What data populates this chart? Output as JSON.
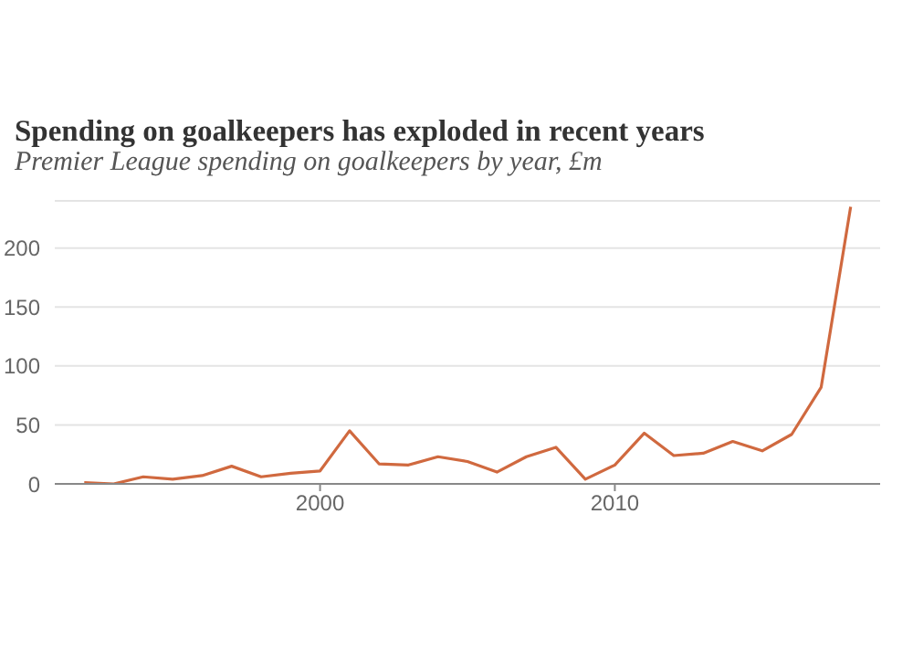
{
  "chart_data": {
    "type": "line",
    "title": "Spending on goalkeepers has exploded in recent years",
    "subtitle": "Premier League spending on goalkeepers by year, £m",
    "x": [
      1992,
      1993,
      1994,
      1995,
      1996,
      1997,
      1998,
      1999,
      2000,
      2001,
      2002,
      2003,
      2004,
      2005,
      2006,
      2007,
      2008,
      2009,
      2010,
      2011,
      2012,
      2013,
      2014,
      2015,
      2016,
      2017,
      2018
    ],
    "series": [
      {
        "color": "#d0693f",
        "values": [
          1,
          0,
          6,
          4,
          7,
          15,
          6,
          9,
          11,
          45,
          17,
          16,
          23,
          19,
          10,
          23,
          31,
          4,
          16,
          43,
          24,
          26,
          36,
          28,
          42,
          82,
          235
        ]
      }
    ],
    "xlim": [
      1991,
      2019
    ],
    "xticks": [
      2000,
      2010
    ],
    "ylim": [
      0,
      240
    ],
    "yticks": [
      0,
      50,
      100,
      150,
      200
    ],
    "grid": "y",
    "marker": "none",
    "line_style": "solid"
  }
}
